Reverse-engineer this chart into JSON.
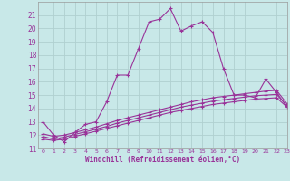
{
  "xlabel": "Windchill (Refroidissement éolien,°C)",
  "bg_color": "#c8e8e8",
  "grid_color": "#b0d0d0",
  "line_color": "#993399",
  "line1_x": [
    0,
    1,
    2,
    3,
    4,
    5,
    6,
    7,
    8,
    9,
    10,
    11,
    12,
    13,
    14,
    15,
    16,
    17,
    18,
    19,
    20,
    21,
    22,
    23
  ],
  "line1_y": [
    13.0,
    12.0,
    11.5,
    12.2,
    12.8,
    13.0,
    14.5,
    16.5,
    16.5,
    18.5,
    20.5,
    20.7,
    21.5,
    19.8,
    20.2,
    20.5,
    19.7,
    17.0,
    15.0,
    15.0,
    14.8,
    16.2,
    15.2,
    14.1
  ],
  "line2_x": [
    0,
    1,
    2,
    3,
    4,
    5,
    6,
    7,
    8,
    9,
    10,
    11,
    12,
    13,
    14,
    15,
    16,
    17,
    18,
    19,
    20,
    21,
    22,
    23
  ],
  "line2_y": [
    11.7,
    11.6,
    11.7,
    11.9,
    12.1,
    12.3,
    12.5,
    12.7,
    12.9,
    13.1,
    13.3,
    13.5,
    13.7,
    13.85,
    14.0,
    14.15,
    14.3,
    14.4,
    14.5,
    14.6,
    14.7,
    14.75,
    14.8,
    14.1
  ],
  "line3_x": [
    0,
    1,
    2,
    3,
    4,
    5,
    6,
    7,
    8,
    9,
    10,
    11,
    12,
    13,
    14,
    15,
    16,
    17,
    18,
    19,
    20,
    21,
    22,
    23
  ],
  "line3_y": [
    11.9,
    11.7,
    11.85,
    12.05,
    12.25,
    12.45,
    12.65,
    12.9,
    13.1,
    13.3,
    13.5,
    13.7,
    13.9,
    14.1,
    14.25,
    14.4,
    14.55,
    14.65,
    14.75,
    14.85,
    14.95,
    15.0,
    15.05,
    14.2
  ],
  "line4_x": [
    0,
    1,
    2,
    3,
    4,
    5,
    6,
    7,
    8,
    9,
    10,
    11,
    12,
    13,
    14,
    15,
    16,
    17,
    18,
    19,
    20,
    21,
    22,
    23
  ],
  "line4_y": [
    12.1,
    11.9,
    12.0,
    12.2,
    12.4,
    12.6,
    12.85,
    13.1,
    13.3,
    13.5,
    13.7,
    13.9,
    14.1,
    14.3,
    14.5,
    14.65,
    14.8,
    14.9,
    15.0,
    15.1,
    15.2,
    15.3,
    15.35,
    14.35
  ],
  "ylim": [
    11,
    22
  ],
  "xlim": [
    -0.5,
    23
  ],
  "yticks": [
    11,
    12,
    13,
    14,
    15,
    16,
    17,
    18,
    19,
    20,
    21
  ],
  "xticks": [
    0,
    1,
    2,
    3,
    4,
    5,
    6,
    7,
    8,
    9,
    10,
    11,
    12,
    13,
    14,
    15,
    16,
    17,
    18,
    19,
    20,
    21,
    22,
    23
  ],
  "xtick_labels": [
    "0",
    "1",
    "2",
    "3",
    "4",
    "5",
    "6",
    "7",
    "8",
    "9",
    "10",
    "11",
    "12",
    "13",
    "14",
    "15",
    "16",
    "17",
    "18",
    "19",
    "20",
    "21",
    "22",
    "23"
  ],
  "ytick_labels": [
    "11",
    "12",
    "13",
    "14",
    "15",
    "16",
    "17",
    "18",
    "19",
    "20",
    "21"
  ],
  "marker": "+"
}
